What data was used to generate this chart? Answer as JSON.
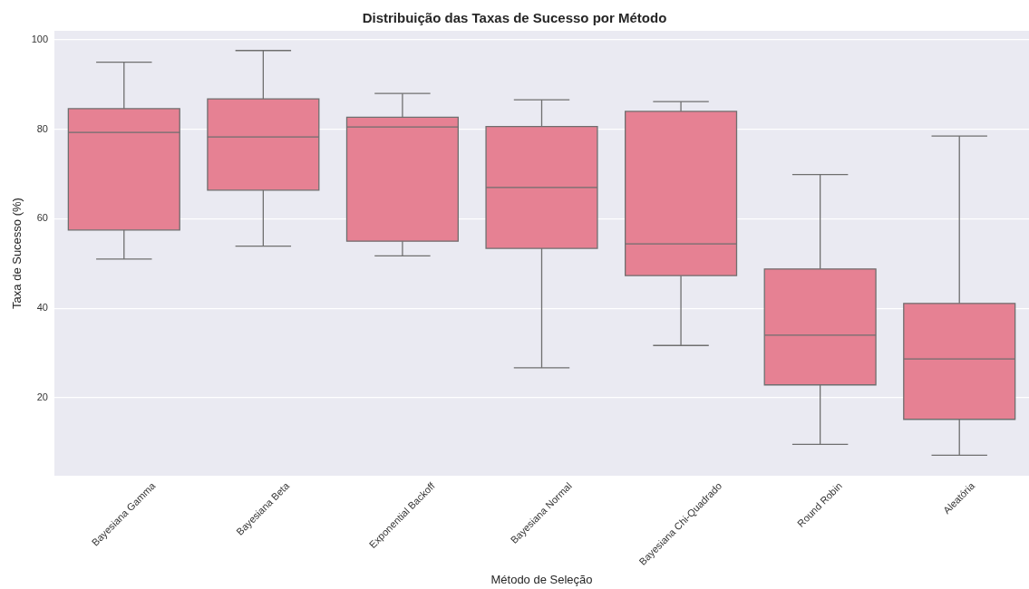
{
  "chart_data": {
    "type": "box",
    "title": "Distribuição das Taxas de Sucesso por Método",
    "xlabel": "Método de Seleção",
    "ylabel": "Taxa de Sucesso (%)",
    "categories": [
      "Bayesiana Gamma",
      "Bayesiana Beta",
      "Exponential Backoff",
      "Bayesiana Normal",
      "Bayesiana Chi-Quadrado",
      "Round Robin",
      "Aleatória"
    ],
    "boxes": [
      {
        "low": 51.0,
        "q1": 57.5,
        "median": 79.3,
        "q3": 84.6,
        "high": 95.0
      },
      {
        "low": 53.9,
        "q1": 66.4,
        "median": 78.3,
        "q3": 86.8,
        "high": 97.6
      },
      {
        "low": 51.7,
        "q1": 55.0,
        "median": 80.5,
        "q3": 82.7,
        "high": 88.0
      },
      {
        "low": 26.7,
        "q1": 53.4,
        "median": 67.0,
        "q3": 80.6,
        "high": 86.6
      },
      {
        "low": 31.7,
        "q1": 47.3,
        "median": 54.4,
        "q3": 84.0,
        "high": 86.2
      },
      {
        "low": 9.6,
        "q1": 22.9,
        "median": 34.0,
        "q3": 48.8,
        "high": 69.9
      },
      {
        "low": 7.2,
        "q1": 15.2,
        "median": 28.7,
        "q3": 41.1,
        "high": 78.5
      }
    ],
    "color": "#e68193",
    "ylim": [
      2.6,
      102
    ],
    "yticks": [
      20,
      40,
      60,
      80,
      100
    ],
    "grid": "y"
  }
}
